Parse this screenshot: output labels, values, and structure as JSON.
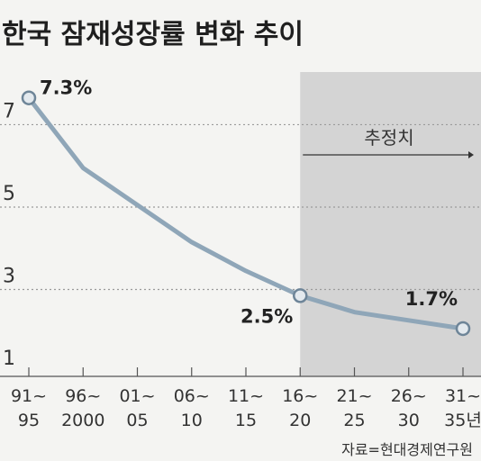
{
  "chart_data": {
    "type": "line",
    "title": "한국 잠재성장률 변화 추이",
    "categories": [
      "91~ 95",
      "96~ 2000",
      "01~ 05",
      "06~ 10",
      "11~ 15",
      "16~ 20",
      "21~ 25",
      "26~ 30",
      "31~ 35년"
    ],
    "category_lines": [
      [
        "91~",
        "95"
      ],
      [
        "96~",
        "2000"
      ],
      [
        "01~",
        "05"
      ],
      [
        "06~",
        "10"
      ],
      [
        "11~",
        "15"
      ],
      [
        "16~",
        "20"
      ],
      [
        "21~",
        "25"
      ],
      [
        "26~",
        "30"
      ],
      [
        "31~",
        "35년"
      ]
    ],
    "series": [
      {
        "values": [
          7.3,
          5.6,
          4.7,
          3.8,
          3.1,
          2.5,
          2.1,
          1.9,
          1.7
        ]
      }
    ],
    "ylim": [
      1,
      7.6
    ],
    "yticks": [
      1,
      3,
      5,
      7
    ],
    "grid": "horizontal-dotted",
    "data_labels": [
      {
        "index": 0,
        "text": "7.3%"
      },
      {
        "index": 5,
        "text": "2.5%"
      },
      {
        "index": 8,
        "text": "1.7%"
      }
    ],
    "forecast": {
      "start_index": 5,
      "label": "추정치"
    },
    "source": "자료=현대경제연구원"
  },
  "colors": {
    "line": "#8fa6b8",
    "marker_fill": "#e3e9ee",
    "marker_stroke": "#6e8598",
    "shade": "#d4d4d4",
    "grid": "#9a9a9a"
  }
}
